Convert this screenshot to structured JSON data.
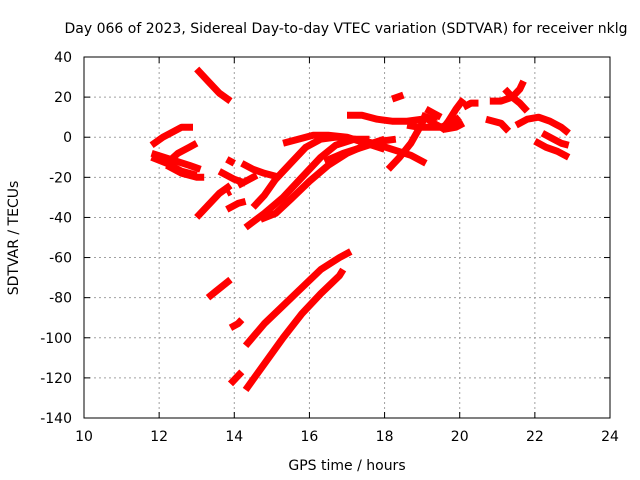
{
  "chart_data": {
    "type": "line",
    "title": "Day 066 of 2023, Sidereal Day-to-day VTEC variation (SDTVAR) for receiver nklg",
    "xlabel": "GPS time / hours",
    "ylabel": "SDTVAR / TECUs",
    "xlim": [
      10,
      24
    ],
    "ylim": [
      -140,
      40
    ],
    "xticks": [
      10,
      12,
      14,
      16,
      18,
      20,
      22,
      24
    ],
    "yticks": [
      -140,
      -120,
      -100,
      -80,
      -60,
      -40,
      -20,
      0,
      20,
      40
    ],
    "grid": true,
    "color": "#ff0000",
    "series": [
      {
        "name": "arc-01",
        "points": [
          [
            11.8,
            -4
          ],
          [
            12.1,
            0
          ],
          [
            12.4,
            3
          ],
          [
            12.6,
            5
          ],
          [
            12.9,
            5
          ]
        ]
      },
      {
        "name": "arc-02",
        "points": [
          [
            11.8,
            -10
          ],
          [
            12.2,
            -13
          ],
          [
            12.6,
            -17
          ],
          [
            13.0,
            -19
          ]
        ]
      },
      {
        "name": "arc-03",
        "points": [
          [
            11.8,
            -8
          ],
          [
            12.3,
            -11
          ],
          [
            12.8,
            -14
          ],
          [
            13.1,
            -16
          ]
        ]
      },
      {
        "name": "arc-04",
        "points": [
          [
            12.2,
            -13
          ],
          [
            12.5,
            -8
          ],
          [
            12.8,
            -5
          ],
          [
            13.0,
            -3
          ]
        ]
      },
      {
        "name": "arc-05",
        "points": [
          [
            12.2,
            -14
          ],
          [
            12.6,
            -18
          ],
          [
            13.0,
            -20
          ],
          [
            13.2,
            -20
          ]
        ]
      },
      {
        "name": "arc-06",
        "points": [
          [
            13.0,
            34
          ],
          [
            13.3,
            28
          ],
          [
            13.6,
            22
          ],
          [
            13.9,
            18
          ]
        ]
      },
      {
        "name": "arc-07",
        "points": [
          [
            13.0,
            -40
          ],
          [
            13.3,
            -34
          ],
          [
            13.6,
            -28
          ],
          [
            13.9,
            -24
          ]
        ]
      },
      {
        "name": "arc-08",
        "points": [
          [
            13.8,
            -11
          ],
          [
            14.0,
            -13
          ]
        ]
      },
      {
        "name": "arc-09",
        "points": [
          [
            13.8,
            -28
          ],
          [
            13.9,
            -27
          ]
        ]
      },
      {
        "name": "arc-10",
        "points": [
          [
            13.8,
            -36
          ],
          [
            14.1,
            -33
          ],
          [
            14.3,
            -32
          ]
        ]
      },
      {
        "name": "arc-11",
        "points": [
          [
            14.2,
            -13
          ],
          [
            14.5,
            -16
          ],
          [
            14.8,
            -18
          ],
          [
            15.2,
            -20
          ]
        ]
      },
      {
        "name": "arc-12",
        "points": [
          [
            14.1,
            -24
          ],
          [
            14.4,
            -21
          ],
          [
            14.6,
            -19
          ]
        ]
      },
      {
        "name": "arc-13",
        "points": [
          [
            13.6,
            -17
          ],
          [
            14.0,
            -21
          ],
          [
            14.3,
            -23
          ]
        ]
      },
      {
        "name": "arc-14",
        "points": [
          [
            14.3,
            -45
          ],
          [
            14.8,
            -38
          ],
          [
            15.3,
            -30
          ],
          [
            15.8,
            -20
          ],
          [
            16.3,
            -10
          ],
          [
            16.7,
            -4
          ],
          [
            17.2,
            -1
          ],
          [
            17.6,
            -1
          ]
        ]
      },
      {
        "name": "arc-15",
        "points": [
          [
            14.5,
            -35
          ],
          [
            14.8,
            -29
          ],
          [
            15.1,
            -21
          ],
          [
            15.5,
            -13
          ],
          [
            15.9,
            -5
          ],
          [
            16.3,
            -1
          ],
          [
            16.7,
            0
          ],
          [
            17.2,
            -1
          ],
          [
            17.7,
            -3
          ],
          [
            18.2,
            -6
          ],
          [
            18.7,
            -9
          ],
          [
            19.1,
            -13
          ]
        ]
      },
      {
        "name": "arc-16",
        "points": [
          [
            14.7,
            -41
          ],
          [
            15.1,
            -38
          ],
          [
            15.5,
            -31
          ],
          [
            16.0,
            -22
          ],
          [
            16.5,
            -14
          ],
          [
            17.0,
            -8
          ],
          [
            17.5,
            -4
          ],
          [
            18.0,
            -1
          ]
        ]
      },
      {
        "name": "arc-17",
        "points": [
          [
            15.3,
            -3
          ],
          [
            15.7,
            -1
          ],
          [
            16.1,
            1
          ],
          [
            16.5,
            1
          ],
          [
            17.0,
            0
          ],
          [
            17.5,
            -3
          ],
          [
            18.0,
            -6
          ]
        ]
      },
      {
        "name": "arc-18",
        "points": [
          [
            16.4,
            -12
          ],
          [
            16.9,
            -8
          ],
          [
            17.4,
            -5
          ],
          [
            17.9,
            -2
          ],
          [
            18.3,
            -1
          ]
        ]
      },
      {
        "name": "arc-19",
        "points": [
          [
            17.0,
            11
          ],
          [
            17.4,
            11
          ],
          [
            17.8,
            9
          ],
          [
            18.2,
            8
          ],
          [
            18.6,
            8
          ],
          [
            19.0,
            9
          ],
          [
            19.4,
            10
          ]
        ]
      },
      {
        "name": "arc-20",
        "points": [
          [
            18.1,
            -16
          ],
          [
            18.4,
            -10
          ],
          [
            18.7,
            -3
          ],
          [
            19.0,
            7
          ],
          [
            19.1,
            12
          ]
        ]
      },
      {
        "name": "arc-21",
        "points": [
          [
            18.2,
            19
          ],
          [
            18.5,
            21
          ]
        ]
      },
      {
        "name": "arc-22",
        "points": [
          [
            18.6,
            6
          ],
          [
            18.9,
            5
          ],
          [
            19.2,
            5
          ],
          [
            19.5,
            5
          ],
          [
            19.8,
            7
          ],
          [
            20.0,
            10
          ]
        ]
      },
      {
        "name": "arc-23",
        "points": [
          [
            19.0,
            11
          ],
          [
            19.3,
            7
          ],
          [
            19.6,
            4
          ],
          [
            19.9,
            5
          ],
          [
            20.1,
            7
          ]
        ]
      },
      {
        "name": "arc-24",
        "points": [
          [
            19.5,
            3
          ],
          [
            19.7,
            8
          ],
          [
            19.9,
            14
          ],
          [
            20.1,
            19
          ]
        ]
      },
      {
        "name": "arc-25",
        "points": [
          [
            19.1,
            14
          ],
          [
            19.3,
            12
          ],
          [
            19.5,
            10
          ]
        ]
      },
      {
        "name": "arc-26",
        "points": [
          [
            20.1,
            15
          ],
          [
            20.3,
            17
          ],
          [
            20.5,
            17
          ]
        ]
      },
      {
        "name": "arc-27",
        "points": [
          [
            20.8,
            18
          ],
          [
            21.1,
            18
          ],
          [
            21.4,
            20
          ],
          [
            21.6,
            24
          ],
          [
            21.7,
            28
          ]
        ]
      },
      {
        "name": "arc-28",
        "points": [
          [
            21.2,
            24
          ],
          [
            21.4,
            20
          ],
          [
            21.6,
            17
          ],
          [
            21.8,
            13
          ]
        ]
      },
      {
        "name": "arc-29",
        "points": [
          [
            20.7,
            9
          ],
          [
            20.9,
            8
          ],
          [
            21.1,
            7
          ],
          [
            21.3,
            3
          ]
        ]
      },
      {
        "name": "arc-30",
        "points": [
          [
            21.5,
            6
          ],
          [
            21.8,
            9
          ],
          [
            22.1,
            10
          ],
          [
            22.4,
            8
          ],
          [
            22.7,
            5
          ],
          [
            22.9,
            2
          ]
        ]
      },
      {
        "name": "arc-31",
        "points": [
          [
            22.0,
            -2
          ],
          [
            22.3,
            -5
          ],
          [
            22.6,
            -7
          ],
          [
            22.9,
            -10
          ]
        ]
      },
      {
        "name": "arc-32",
        "points": [
          [
            22.2,
            2
          ],
          [
            22.5,
            -1
          ],
          [
            22.7,
            -3
          ],
          [
            22.9,
            -4
          ]
        ]
      },
      {
        "name": "arc-33",
        "points": [
          [
            13.3,
            -80
          ],
          [
            13.5,
            -77
          ],
          [
            13.7,
            -74
          ],
          [
            13.9,
            -71
          ]
        ]
      },
      {
        "name": "arc-34",
        "points": [
          [
            13.9,
            -95
          ],
          [
            14.1,
            -93
          ],
          [
            14.2,
            -91
          ]
        ]
      },
      {
        "name": "arc-35",
        "points": [
          [
            13.9,
            -123
          ],
          [
            14.1,
            -119
          ],
          [
            14.2,
            -117
          ]
        ]
      },
      {
        "name": "arc-36",
        "points": [
          [
            14.3,
            -104
          ],
          [
            14.8,
            -93
          ],
          [
            15.3,
            -84
          ],
          [
            15.8,
            -75
          ],
          [
            16.3,
            -66
          ],
          [
            16.8,
            -60
          ],
          [
            17.1,
            -57
          ]
        ]
      },
      {
        "name": "arc-37",
        "points": [
          [
            14.3,
            -126
          ],
          [
            14.8,
            -113
          ],
          [
            15.3,
            -100
          ],
          [
            15.8,
            -88
          ],
          [
            16.3,
            -78
          ],
          [
            16.8,
            -69
          ],
          [
            16.9,
            -66
          ]
        ]
      }
    ]
  }
}
